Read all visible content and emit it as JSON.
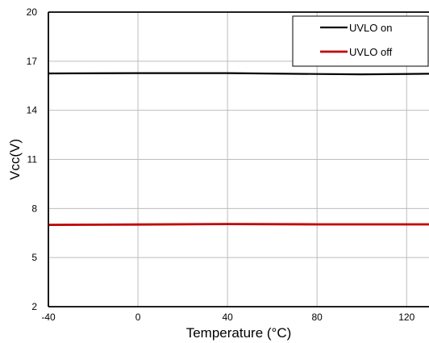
{
  "chart_data": {
    "type": "line",
    "xlabel": "Temperature (°C)",
    "ylabel": "Vcc(V)",
    "xlim": [
      -40,
      130
    ],
    "ylim": [
      2,
      20
    ],
    "x_ticks": [
      -40,
      0,
      40,
      80,
      120
    ],
    "x_tick_labels": [
      "-40",
      "0",
      "40",
      "80",
      "120"
    ],
    "y_ticks": [
      2,
      5,
      8,
      11,
      14,
      17,
      20
    ],
    "y_tick_labels": [
      "2",
      "5",
      "8",
      "11",
      "14",
      "17",
      "20"
    ],
    "grid": true,
    "legend_position": "top-right",
    "series": [
      {
        "name": "UVLO on",
        "color": "#000000",
        "x": [
          -40,
          0,
          40,
          80,
          100,
          130
        ],
        "y": [
          16.25,
          16.27,
          16.27,
          16.22,
          16.2,
          16.23
        ]
      },
      {
        "name": "UVLO off",
        "color": "#c00000",
        "x": [
          -40,
          0,
          40,
          80,
          130
        ],
        "y": [
          7.0,
          7.02,
          7.05,
          7.03,
          7.03
        ]
      }
    ]
  }
}
